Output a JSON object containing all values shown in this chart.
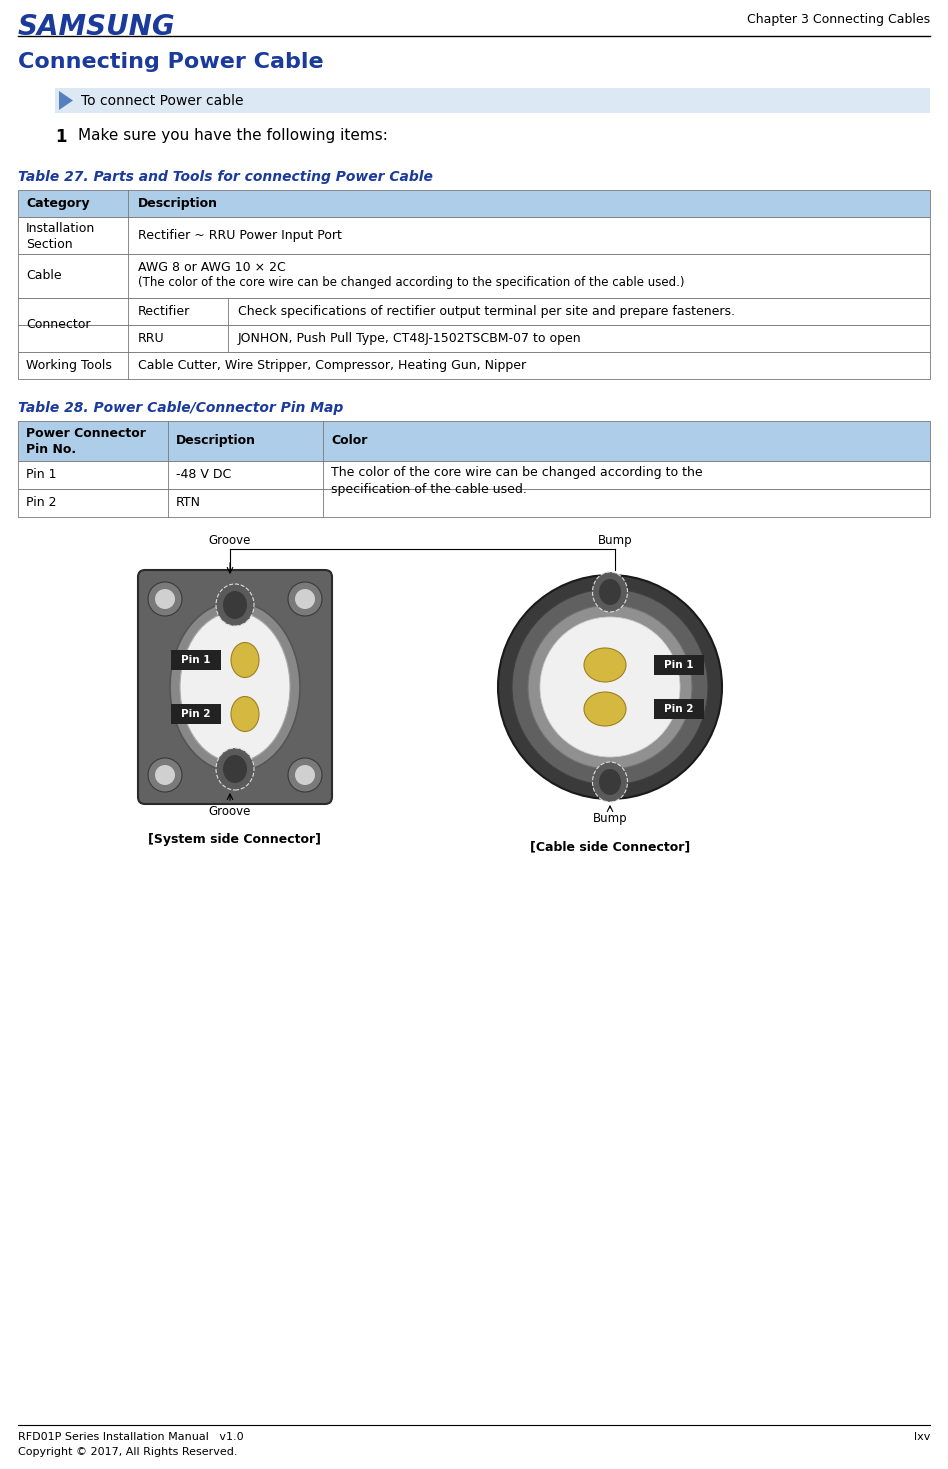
{
  "page_width": 9.48,
  "page_height": 14.69,
  "bg_color": "#ffffff",
  "samsung_color": "#1a3a9c",
  "samsung_text": "SAMSUNG",
  "chapter_text": "Chapter 3 Connecting Cables",
  "title_text": "Connecting Power Cable",
  "title_color": "#1a3a9c",
  "banner_text": "To connect Power cable",
  "banner_bg": "#dce9f5",
  "step1_text": "Make sure you have the following items:",
  "table27_title": "Table 27. Parts and Tools for connecting Power Cable",
  "table27_title_color": "#1a3a9c",
  "table28_title": "Table 28. Power Cable/Connector Pin Map",
  "table28_title_color": "#1a3a9c",
  "header_bg": "#aecde8",
  "border_color": "#777777",
  "footer_left": "RFD01P Series Installation Manual   v1.0",
  "footer_right": "lxv",
  "footer_bottom": "Copyright © 2017, All Rights Reserved."
}
